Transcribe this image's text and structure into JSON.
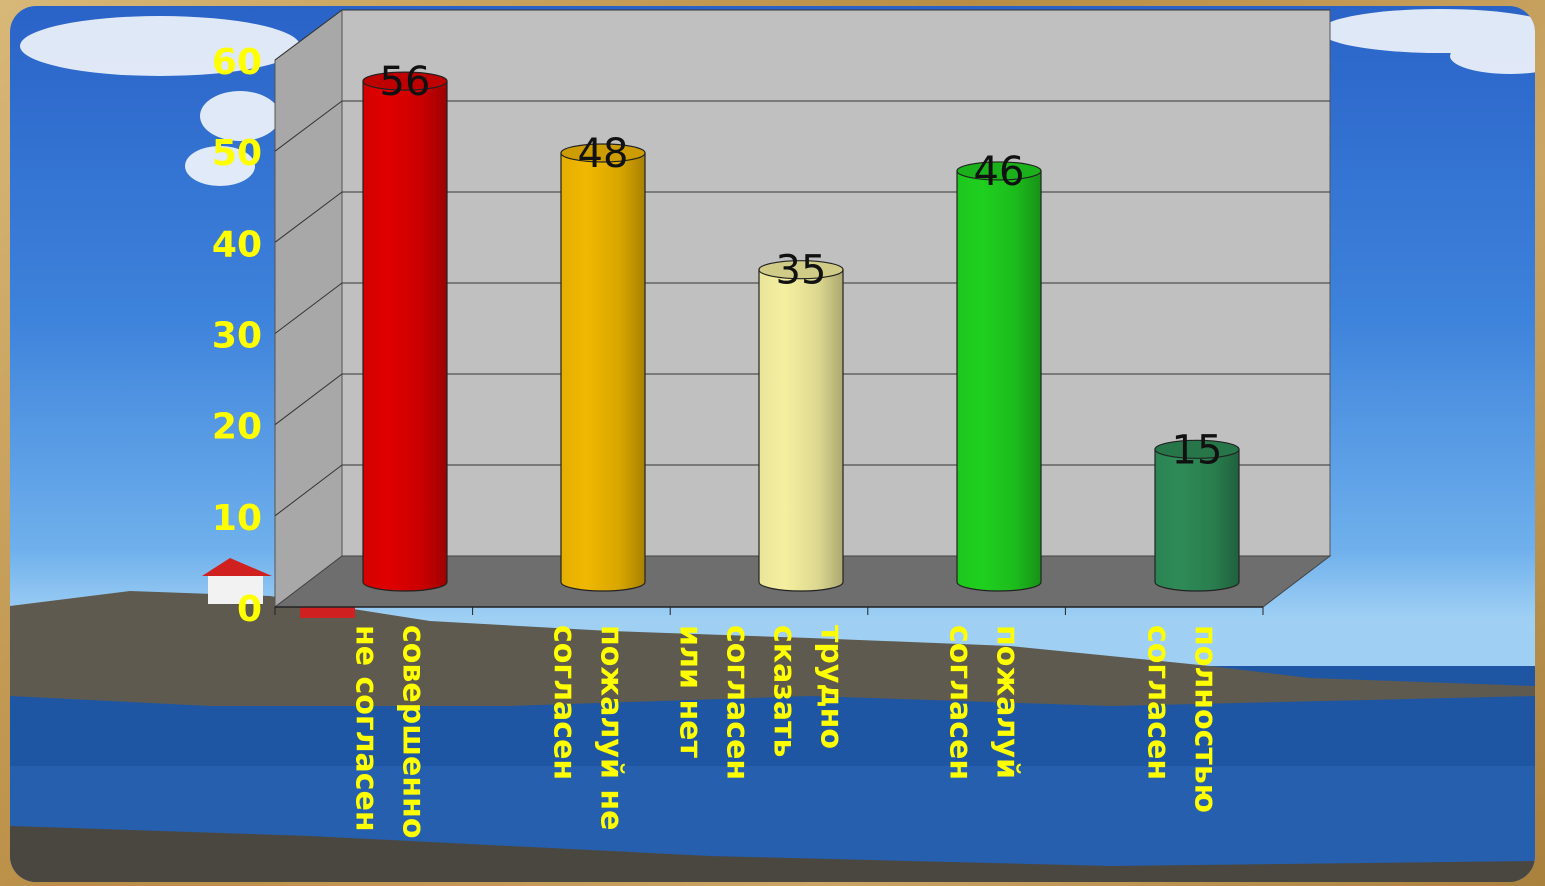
{
  "chart_data": {
    "type": "bar",
    "categories": [
      [
        "совершенно",
        "не согласен"
      ],
      [
        "пожалуй не",
        "согласен"
      ],
      [
        "трудно",
        "сказать",
        "согласен",
        "или нет"
      ],
      [
        "пожалуй",
        "согласен"
      ],
      [
        "полностью",
        "согласен"
      ]
    ],
    "values": [
      56,
      48,
      35,
      46,
      15
    ],
    "data_labels": [
      "56",
      "48",
      "35",
      "46",
      "15"
    ],
    "yticks": [
      "0",
      "10",
      "20",
      "30",
      "40",
      "50",
      "60"
    ],
    "ylim": [
      0,
      60
    ],
    "colors": [
      "#e00000",
      "#f0b800",
      "#f5f0a0",
      "#1fd01f",
      "#2e8b57"
    ],
    "style": "3d-cylinder",
    "grid": true,
    "tick_color": "#ffff00"
  }
}
